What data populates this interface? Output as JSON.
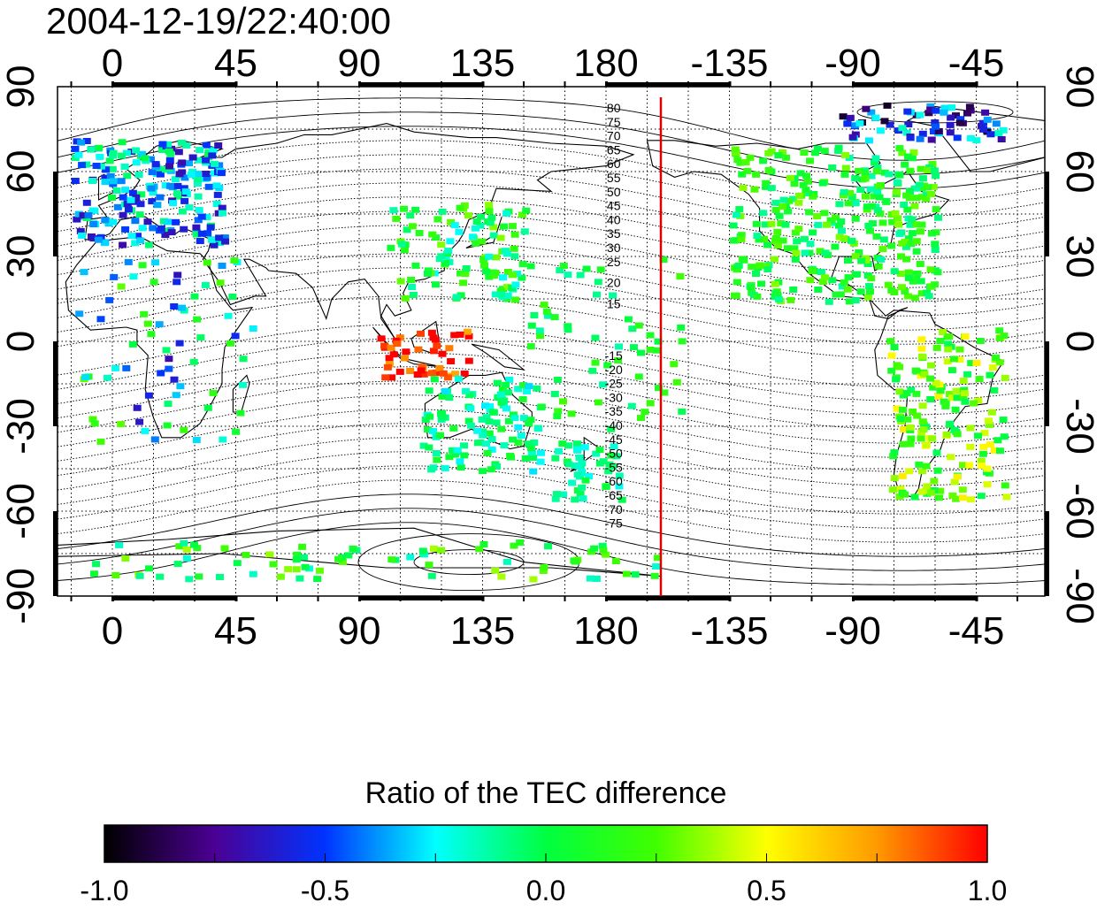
{
  "timestamp": "2004-12-19/22:40:00",
  "map": {
    "top_lon_labels": [
      "0",
      "45",
      "90",
      "135",
      "180",
      "-135",
      "-90",
      "-45"
    ],
    "bottom_lon_labels": [
      "0",
      "45",
      "90",
      "135",
      "180",
      "-135",
      "-90",
      "-45"
    ],
    "left_lat_labels": [
      "90",
      "60",
      "30",
      "0",
      "-30",
      "-60",
      "-90"
    ],
    "right_lat_labels": [
      "90",
      "60",
      "30",
      "0",
      "-30",
      "-60",
      "-90"
    ],
    "lon_range": [
      -20,
      340
    ],
    "lat_range": [
      -90,
      90
    ],
    "grid": "dotted, every 15 degrees",
    "terminator_line": {
      "longitude": 200,
      "color": "#e00000"
    },
    "contour_labels_north": [
      "80",
      "75",
      "70",
      "65",
      "60",
      "55",
      "50",
      "45",
      "40",
      "35",
      "30",
      "25",
      "20",
      "15"
    ],
    "contour_labels_south": [
      "-15",
      "-20",
      "-25",
      "-30",
      "-35",
      "-40",
      "-45",
      "-50",
      "-55",
      "-60",
      "-65",
      "-70",
      "-75"
    ]
  },
  "colorbar": {
    "title": "Ratio of the TEC difference",
    "tick_labels": [
      "-1.0",
      "-0.5",
      "0.0",
      "0.5",
      "1.0"
    ],
    "range": [
      -1.0,
      1.0
    ],
    "colors": [
      "#000000",
      "#4b0094",
      "#0033ff",
      "#00ffff",
      "#00ff40",
      "#40ff00",
      "#ffff00",
      "#ff9a00",
      "#ff0000"
    ]
  },
  "data_regions": [
    {
      "region": "Europe",
      "value": -0.35
    },
    {
      "region": "North America",
      "value": 0.1
    },
    {
      "region": "East Asia / Japan",
      "value": 0.05
    },
    {
      "region": "Indonesia",
      "value": 0.95
    },
    {
      "region": "Australia",
      "value": -0.1
    },
    {
      "region": "South America",
      "value": 0.25
    },
    {
      "region": "Arctic Canada",
      "value": -0.55
    },
    {
      "region": "Antarctica coast",
      "value": 0.1
    },
    {
      "region": "Africa",
      "value": -0.2
    }
  ]
}
